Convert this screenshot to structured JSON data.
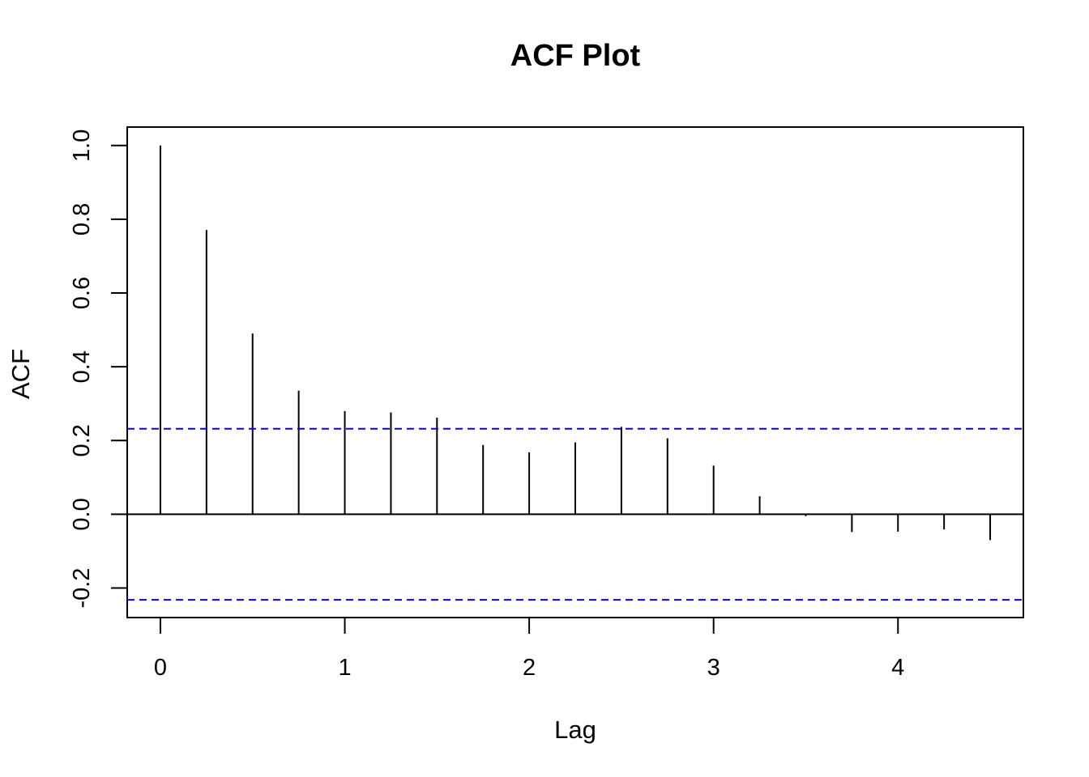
{
  "chart_data": {
    "type": "bar",
    "title": "ACF Plot",
    "xlabel": "Lag",
    "ylabel": "ACF",
    "x": [
      0,
      0.25,
      0.5,
      0.75,
      1,
      1.25,
      1.5,
      1.75,
      2,
      2.25,
      2.5,
      2.75,
      3,
      3.25,
      3.5,
      3.75,
      4,
      4.25,
      4.5
    ],
    "values": [
      1.0,
      0.771,
      0.49,
      0.335,
      0.28,
      0.276,
      0.262,
      0.188,
      0.168,
      0.195,
      0.237,
      0.206,
      0.132,
      0.049,
      -0.005,
      -0.048,
      -0.047,
      -0.041,
      -0.07
    ],
    "confidence_bound": 0.232,
    "xlim": [
      -0.18,
      4.68
    ],
    "ylim": [
      -0.28,
      1.05
    ],
    "x_ticks": [
      0,
      1,
      2,
      3,
      4
    ],
    "x_tick_labels": [
      "0",
      "1",
      "2",
      "3",
      "4"
    ],
    "y_ticks": [
      -0.2,
      0.0,
      0.2,
      0.4,
      0.6,
      0.8,
      1.0
    ],
    "y_tick_labels": [
      "-0.2",
      "0.0",
      "0.2",
      "0.4",
      "0.6",
      "0.8",
      "1.0"
    ],
    "grid": false,
    "colors": {
      "bars": "#000000",
      "zero_line": "#000000",
      "confidence": "#0000ff",
      "frame": "#000000"
    }
  }
}
